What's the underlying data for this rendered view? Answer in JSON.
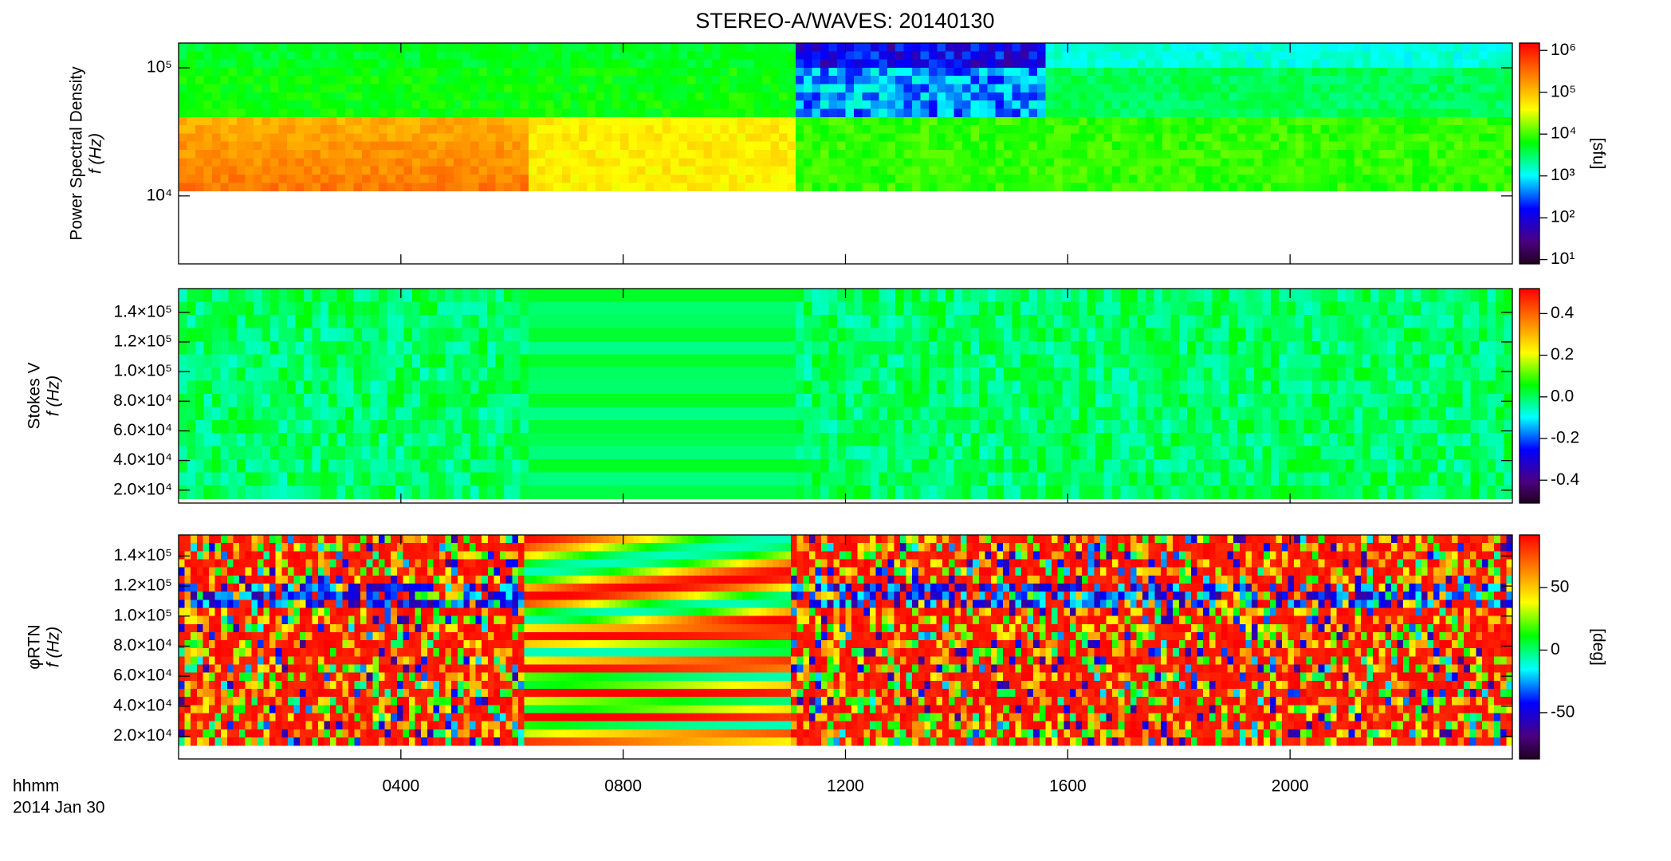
{
  "chart_data": {
    "type": "heatmap",
    "title": "STEREO-A/WAVES: 20140130",
    "xlim": [
      0,
      24
    ],
    "xticks": [
      {
        "value": 4,
        "label": "0400"
      },
      {
        "value": 8,
        "label": "0800"
      },
      {
        "value": 12,
        "label": "1200"
      },
      {
        "value": 16,
        "label": "1600"
      },
      {
        "value": 20,
        "label": "2000"
      }
    ],
    "xlabel": "hhmm",
    "date": "2014 Jan 30",
    "panels": [
      {
        "ylabel": [
          "Power Spectral Density",
          "f (Hz)"
        ],
        "ylog": true,
        "ylim": [
          2950,
          156000
        ],
        "yticks": [
          {
            "value": 10000,
            "label": "10⁴"
          },
          {
            "value": 100000,
            "label": "10⁵"
          }
        ],
        "colorbar": {
          "log": true,
          "lim": [
            7.9,
            1500000
          ],
          "label": "[sfu]",
          "ticks": [
            {
              "value": 10,
              "label": "10¹"
            },
            {
              "value": 100,
              "label": "10²"
            },
            {
              "value": 1000,
              "label": "10³"
            },
            {
              "value": 10000,
              "label": "10⁴"
            },
            {
              "value": 100000,
              "label": "10⁵"
            },
            {
              "value": 1000000,
              "label": "10⁶"
            }
          ]
        }
      },
      {
        "ylabel": [
          "Stokes V",
          "f (Hz)"
        ],
        "ylog": false,
        "ylim": [
          11300,
          156000
        ],
        "yticks": [
          {
            "value": 20000,
            "label": "2.0×10⁴"
          },
          {
            "value": 40000,
            "label": "4.0×10⁴"
          },
          {
            "value": 60000,
            "label": "6.0×10⁴"
          },
          {
            "value": 80000,
            "label": "8.0×10⁴"
          },
          {
            "value": 100000,
            "label": "1.0×10⁵"
          },
          {
            "value": 120000,
            "label": "1.2×10⁵"
          },
          {
            "value": 140000,
            "label": "1.4×10⁵"
          }
        ],
        "colorbar": {
          "log": false,
          "lim": [
            -0.51,
            0.52
          ],
          "label": "",
          "ticks": [
            -0.4,
            -0.2,
            {
              "value": 0,
              "label": "0.0"
            },
            0.2,
            0.4
          ]
        }
      },
      {
        "ylabel": [
          "φRTN",
          "f (Hz)"
        ],
        "ylog": false,
        "ylim": [
          4900,
          154000
        ],
        "yticks": [
          {
            "value": 20000,
            "label": "2.0×10⁴"
          },
          {
            "value": 40000,
            "label": "4.0×10⁴"
          },
          {
            "value": 60000,
            "label": "6.0×10⁴"
          },
          {
            "value": 80000,
            "label": "8.0×10⁴"
          },
          {
            "value": 100000,
            "label": "1.0×10⁵"
          },
          {
            "value": 120000,
            "label": "1.2×10⁵"
          },
          {
            "value": 140000,
            "label": "1.4×10⁵"
          }
        ],
        "colorbar": {
          "log": false,
          "lim": [
            -87,
            92
          ],
          "label": "[deg]",
          "ticks": [
            -50,
            0,
            50
          ]
        }
      }
    ]
  }
}
